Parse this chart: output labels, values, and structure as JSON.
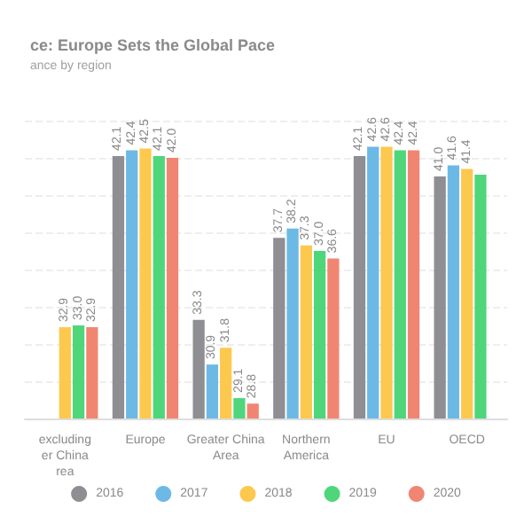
{
  "chart_data": {
    "type": "bar",
    "title": "ce: Europe Sets the Global Pace",
    "subtitle": "ance by region",
    "categories": [
      "excluding\ner China\nrea",
      "Europe",
      "Greater China\nArea",
      "Northern\nAmerica",
      "EU",
      "OECD"
    ],
    "series": [
      {
        "name": "2016",
        "color": "#8e8e93",
        "values": [
          null,
          42.1,
          33.3,
          37.7,
          42.1,
          41.0
        ],
        "value_labels": [
          null,
          "42.1",
          "33.3",
          "37.7",
          "42.1",
          "41.0"
        ]
      },
      {
        "name": "2017",
        "color": "#6cb9e6",
        "values": [
          null,
          42.4,
          30.9,
          38.2,
          42.6,
          41.6
        ],
        "value_labels": [
          null,
          "42.4",
          "30.9",
          "38.2",
          "42.6",
          "41.6"
        ]
      },
      {
        "name": "2018",
        "color": "#fdc84e",
        "values": [
          32.9,
          42.5,
          31.8,
          37.3,
          42.6,
          41.4
        ],
        "value_labels": [
          "32.9",
          "42.5",
          "31.8",
          "37.3",
          "42.6",
          "41.4"
        ]
      },
      {
        "name": "2019",
        "color": "#4fd67b",
        "values": [
          33.0,
          42.1,
          29.1,
          37.0,
          42.4,
          41.1
        ],
        "value_labels": [
          "33.0",
          "42.1",
          "29.1",
          "37.0",
          "42.4",
          null
        ]
      },
      {
        "name": "2020",
        "color": "#f08672",
        "values": [
          32.9,
          42.0,
          28.8,
          36.6,
          42.4,
          null
        ],
        "value_labels": [
          "32.9",
          "42.0",
          "28.8",
          "36.6",
          "42.4",
          null
        ]
      }
    ],
    "ylim": [
      28,
      44
    ],
    "yticks": [
      {
        "value": 28,
        "label": null
      },
      {
        "value": 30,
        "label": null
      },
      {
        "value": 32,
        "label": null
      },
      {
        "value": 34,
        "label": null
      },
      {
        "value": 36,
        "label": null
      },
      {
        "value": 38,
        "label": null
      },
      {
        "value": 40,
        "label": null
      },
      {
        "value": 42,
        "label": null
      },
      {
        "value": 44,
        "label": null
      }
    ],
    "tick_labels": "x",
    "grid": "y",
    "legend": "bottom"
  }
}
